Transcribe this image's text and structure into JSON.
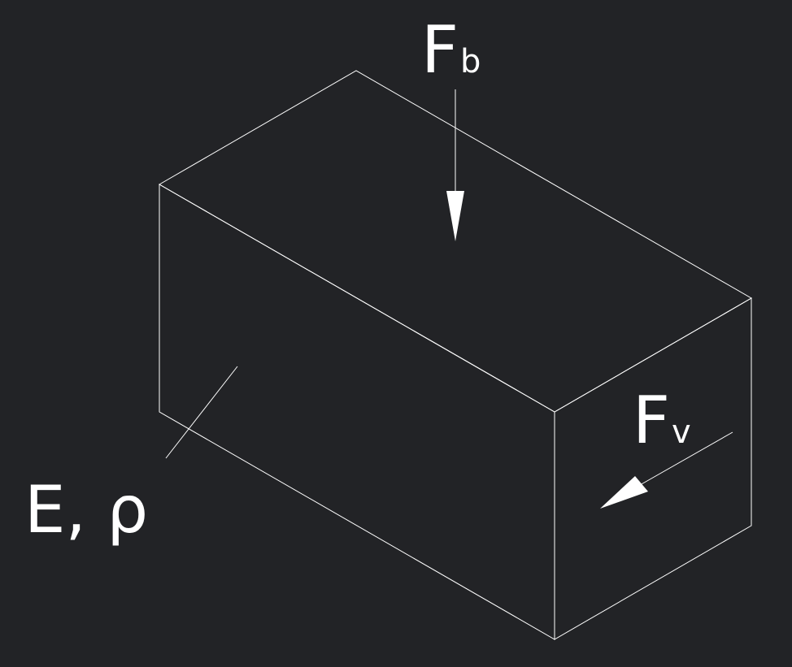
{
  "diagram": {
    "force_top": {
      "symbol": "F",
      "subscript": "b"
    },
    "force_side": {
      "symbol": "F",
      "subscript": "v"
    },
    "material_label": "E, ρ"
  }
}
